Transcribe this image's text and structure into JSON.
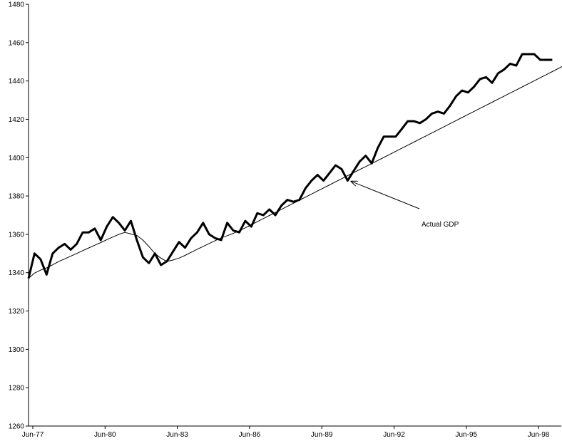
{
  "chart_data": {
    "type": "line",
    "title": "",
    "xlabel": "",
    "ylabel": "",
    "ylim": [
      1260,
      1480
    ],
    "grid": false,
    "legend": "none",
    "y_ticks": [
      1260,
      1280,
      1300,
      1320,
      1340,
      1360,
      1380,
      1400,
      1420,
      1440,
      1460,
      1480
    ],
    "y_tick_labels": [
      "1260",
      "1280",
      "1300",
      "1320",
      "1340",
      "1360",
      "1380",
      "1400",
      "1420",
      "1440",
      "1460",
      "1480"
    ],
    "x_ticks": [
      "Jun-77",
      "Jun-80",
      "Jun-83",
      "Jun-86",
      "Jun-89",
      "Jun-92",
      "Jun-95",
      "Jun-98"
    ],
    "x_tick_labels": [
      "Jun-77",
      "Jun-80",
      "Jun-83",
      "Jun-86",
      "Jun-89",
      "Jun-92",
      "Jun-95",
      "Jun-98"
    ],
    "series": [
      {
        "name": "Actual GDP",
        "color": "#000000",
        "values": [
          1337,
          1350,
          1347,
          1339,
          1350,
          1353,
          1355,
          1352,
          1355,
          1361,
          1361,
          1363,
          1357,
          1364,
          1369,
          1366,
          1362,
          1367,
          1357,
          1348,
          1345,
          1350,
          1344,
          1346,
          1351,
          1356,
          1353,
          1358,
          1361,
          1366,
          1360,
          1358,
          1357,
          1366,
          1362,
          1361,
          1367,
          1364,
          1371,
          1370,
          1373,
          1370,
          1375,
          1378,
          1377,
          1378,
          1384,
          1388,
          1391,
          1388,
          1392,
          1396,
          1394,
          1388,
          1393,
          1398,
          1401,
          1397,
          1405,
          1411,
          1411,
          1411,
          1415,
          1419,
          1419,
          1418,
          1420,
          1423,
          1424,
          1423,
          1427,
          1432,
          1435,
          1434,
          1437,
          1441,
          1442,
          1439,
          1444,
          1446,
          1449,
          1448,
          1454,
          1454,
          1454,
          1451,
          1451,
          1451
        ]
      },
      {
        "name": "",
        "color": "#000000",
        "values": [
          1337,
          1339.8,
          1341.3,
          1342.5,
          1344.1,
          1345.8,
          1347.2,
          1348.6,
          1350,
          1351.5,
          1352.9,
          1354.3,
          1355.7,
          1357.2,
          1358.6,
          1360,
          1361,
          1360.2,
          1359.4,
          1357,
          1353.6,
          1350,
          1347.5,
          1345.9,
          1346.6,
          1347.6,
          1349,
          1350.6,
          1352.2,
          1353.7,
          1355.2,
          1356.7,
          1358.2,
          1359.3,
          1360.5,
          1361.9,
          1363.4,
          1365,
          1366.6,
          1368.2,
          1369.8,
          1371.4,
          1373,
          1374.6,
          1376.2,
          1377.8,
          1379.4,
          1381,
          1382.6,
          1384.2,
          1385.8,
          1387.4,
          1389,
          1390.6,
          1392.2,
          1393.8,
          1395.3,
          1396.9,
          1398.5,
          1400.1,
          1401.7,
          1403.3,
          1404.9,
          1406.5,
          1408.1,
          1409.7,
          1411.3,
          1412.9,
          1414.5,
          1416.1,
          1417.7,
          1419.3,
          1420.9,
          1422.5,
          1424.1,
          1425.7,
          1427.3,
          1428.9,
          1430.5,
          1432.1,
          1433.7,
          1435.3,
          1436.9,
          1438.5,
          1440.1,
          1441.7,
          1443.3,
          1444.9,
          1446.5,
          1448.1,
          1449.6,
          1451,
          1452
        ]
      }
    ],
    "annotations": [
      {
        "text": "Actual GDP",
        "points_to_series": "Actual GDP",
        "points_to_index": 53
      }
    ]
  }
}
